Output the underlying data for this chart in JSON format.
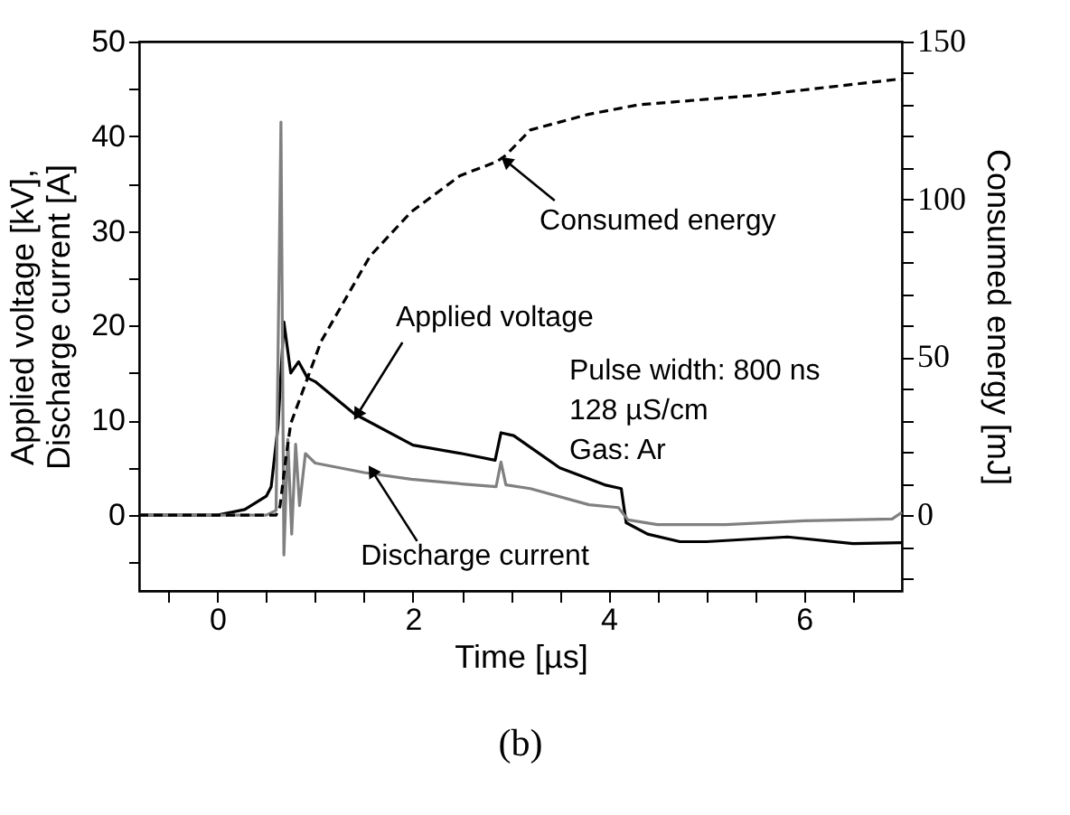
{
  "chart_data": {
    "type": "line",
    "title": "(b)",
    "xlabel": "Time [µs]",
    "ylabel": "Applied voltage [kV],\nDischarge current [A]",
    "y2label": "Consumed energy [mJ]",
    "xlim": [
      -0.8,
      7
    ],
    "xticks": [
      {
        "value": -0.5,
        "label": null
      },
      0,
      {
        "value": 0.5,
        "label": null
      },
      {
        "value": 1,
        "label": null
      },
      {
        "value": 1.5,
        "label": null
      },
      2,
      {
        "value": 2.5,
        "label": null
      },
      {
        "value": 3,
        "label": null
      },
      {
        "value": 3.5,
        "label": null
      },
      4,
      {
        "value": 4.5,
        "label": null
      },
      {
        "value": 5,
        "label": null
      },
      {
        "value": 5.5,
        "label": null
      },
      6,
      {
        "value": 6.5,
        "label": null
      }
    ],
    "ylim": [
      -8,
      50
    ],
    "yticks": [
      {
        "value": -5,
        "label": null
      },
      0,
      {
        "value": 5,
        "label": null
      },
      10,
      {
        "value": 15,
        "label": null
      },
      20,
      {
        "value": 25,
        "label": null
      },
      30,
      {
        "value": 35,
        "label": null
      },
      40,
      {
        "value": 45,
        "label": null
      },
      50
    ],
    "y2lim": [
      -24,
      150
    ],
    "y2ticks": [
      {
        "value": -20,
        "label": null
      },
      {
        "value": -10,
        "label": null
      },
      0,
      {
        "value": 10,
        "label": null
      },
      {
        "value": 20,
        "label": null
      },
      {
        "value": 30,
        "label": null
      },
      {
        "value": 40,
        "label": null
      },
      50,
      {
        "value": 60,
        "label": null
      },
      {
        "value": 70,
        "label": null
      },
      {
        "value": 80,
        "label": null
      },
      {
        "value": 90,
        "label": null
      },
      100,
      {
        "value": 110,
        "label": null
      },
      {
        "value": 120,
        "label": null
      },
      {
        "value": 130,
        "label": null
      },
      {
        "value": 140,
        "label": null
      },
      150
    ],
    "grid": false,
    "legend": false,
    "marker": "none",
    "series": [
      {
        "color": "#000000",
        "line_style": "solid",
        "x": [
          -0.8,
          0,
          0.28,
          0.5,
          0.55,
          0.62,
          0.68,
          0.75,
          0.83,
          0.92,
          1.0,
          1.4,
          2.0,
          2.5,
          2.84,
          2.9,
          3.03,
          3.5,
          3.96,
          4.13,
          4.18,
          4.4,
          4.73,
          5.0,
          5.83,
          6.5,
          7.0
        ],
        "values": [
          0,
          0,
          0.6,
          2,
          3,
          9.4,
          20.4,
          15,
          16.2,
          14.5,
          14.1,
          10.7,
          7.4,
          6.5,
          5.8,
          8.7,
          8.4,
          5.0,
          3.2,
          2.8,
          -0.8,
          -2,
          -2.8,
          -2.8,
          -2.3,
          -3,
          -2.9
        ]
      },
      {
        "color": "#808080",
        "line_style": "solid",
        "x": [
          -0.8,
          0,
          0.5,
          0.6,
          0.65,
          0.68,
          0.72,
          0.76,
          0.8,
          0.84,
          0.9,
          1.0,
          1.5,
          1.98,
          2.5,
          2.85,
          2.9,
          2.95,
          3.2,
          3.8,
          4.1,
          4.2,
          4.5,
          5.2,
          6.0,
          6.9,
          7.0
        ],
        "values": [
          0,
          0,
          0,
          0.5,
          41.5,
          -4.2,
          8,
          -2,
          7.5,
          1,
          6.5,
          5.5,
          4.5,
          3.8,
          3.3,
          3.0,
          5.6,
          3.2,
          2.8,
          1.1,
          0.8,
          -0.5,
          -1,
          -1,
          -0.6,
          -0.4,
          0.3
        ]
      },
      {
        "color": "#000000",
        "line_style": "dashed",
        "axis": "y2",
        "x": [
          -0.8,
          0.6,
          0.64,
          0.7,
          0.75,
          1.06,
          1.56,
          1.98,
          2.48,
          2.86,
          2.95,
          3.2,
          3.8,
          4.31,
          5.52,
          6.94,
          7.0
        ],
        "values": [
          0,
          0,
          2.8,
          18,
          29,
          55,
          82,
          96,
          107.5,
          112,
          114,
          122,
          127,
          130,
          133,
          138,
          138
        ]
      }
    ],
    "annotations": [
      {
        "text": "Applied voltage",
        "x": 1.43,
        "y": 10.6
      },
      {
        "text": "Consumed energy",
        "x": 2.95,
        "y": 37.4
      },
      {
        "text": "Discharge current",
        "x": 1.58,
        "y": 4.7
      },
      "Pulse width: 800 ns",
      "128 µS/cm",
      "Gas: Ar"
    ]
  }
}
